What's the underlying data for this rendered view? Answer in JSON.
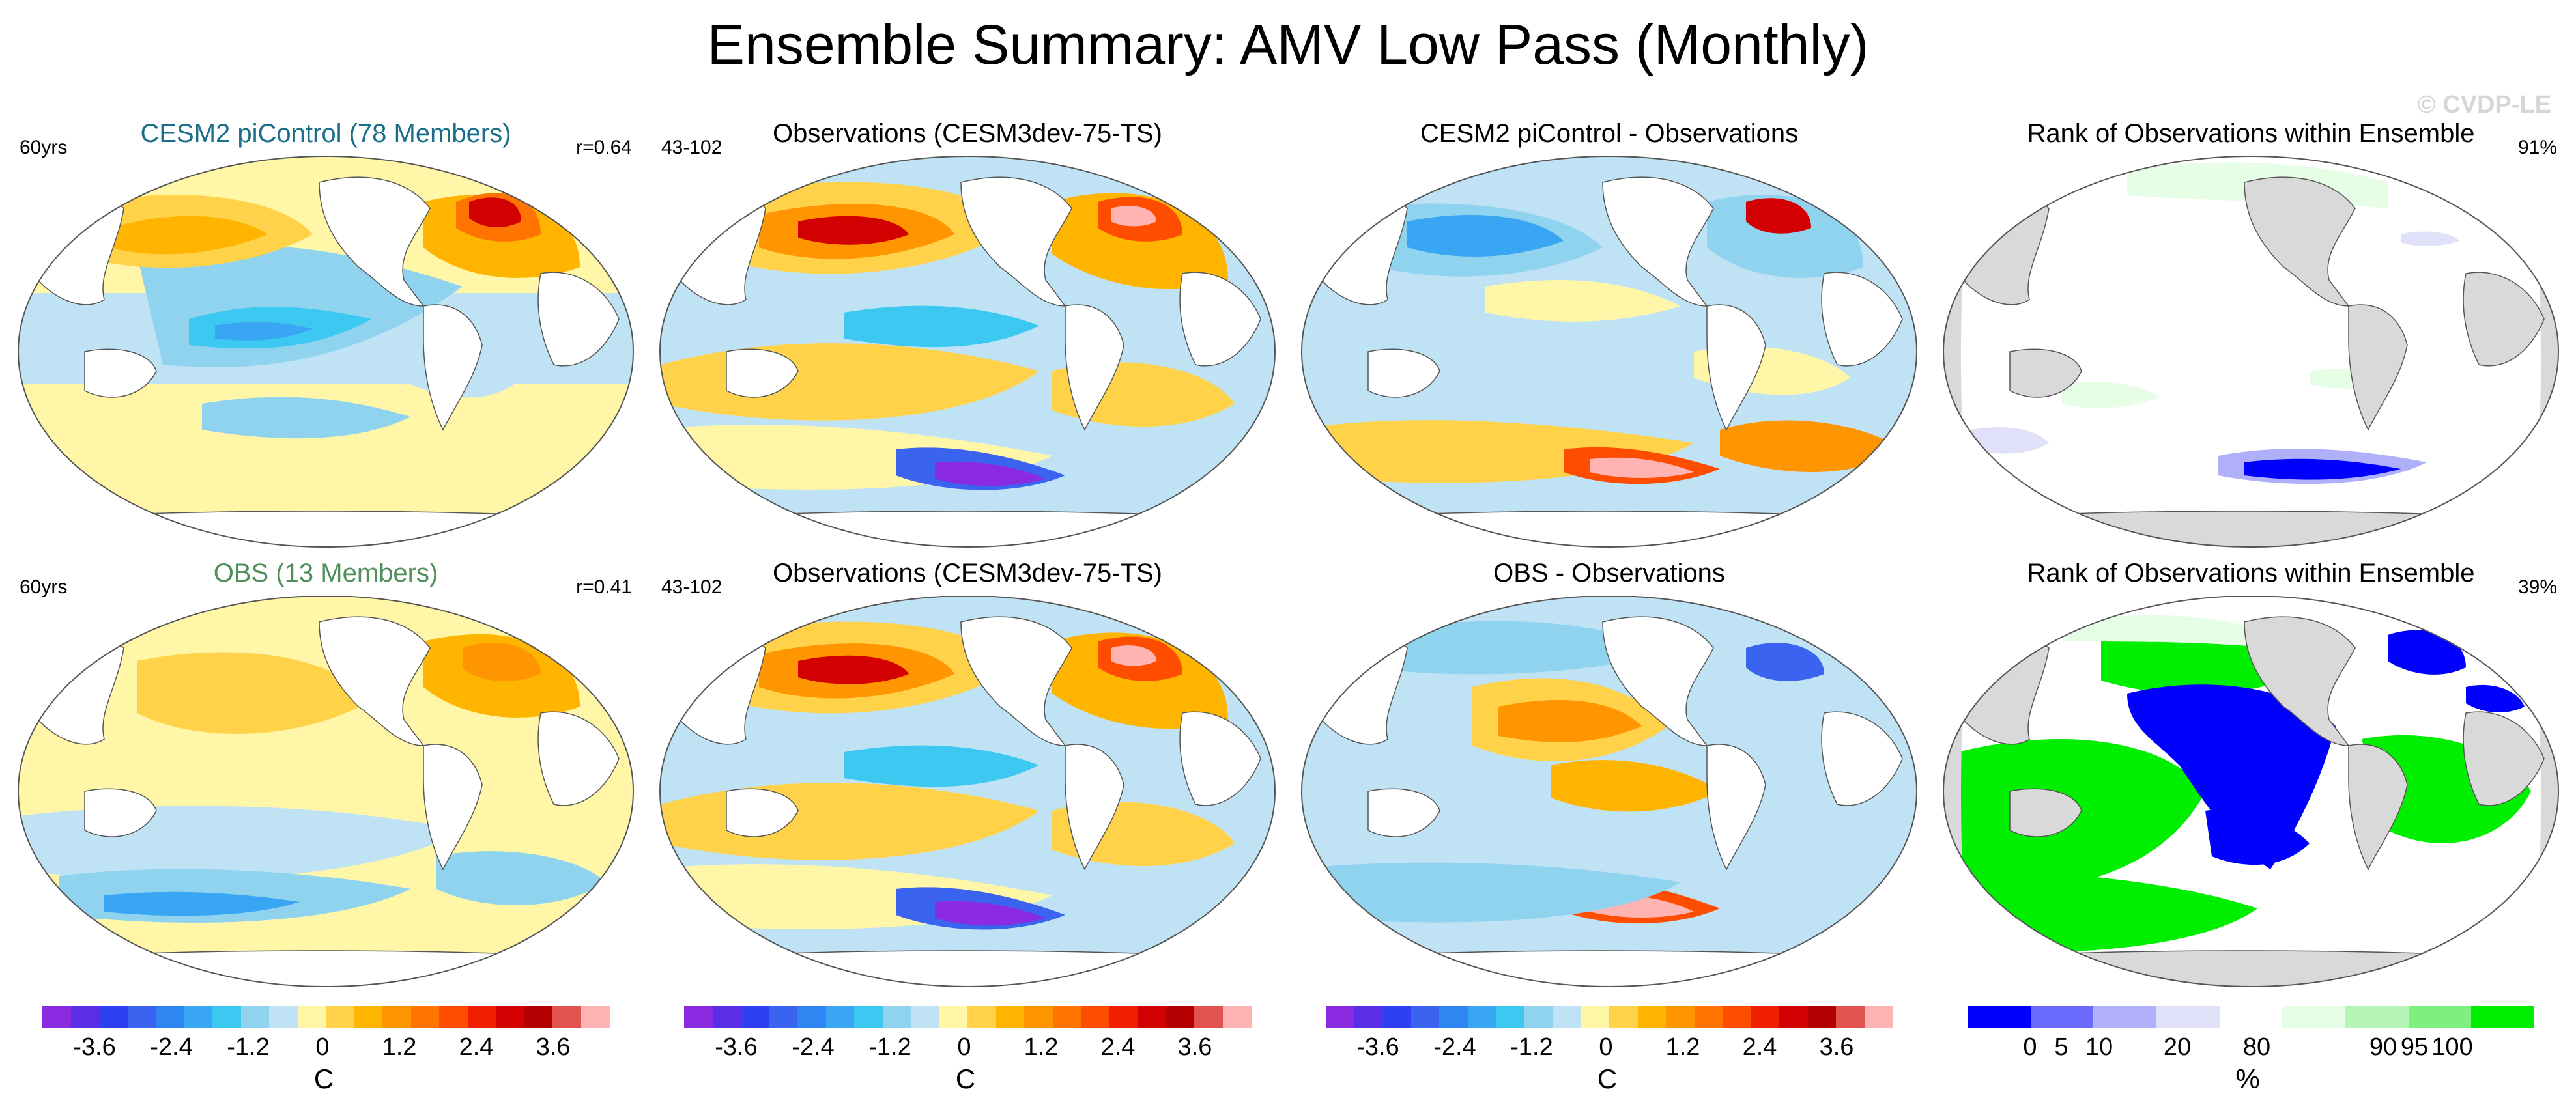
{
  "title": "Ensemble Summary: AMV Low Pass (Monthly)",
  "watermark": "© CVDP-LE",
  "colors": {
    "model_title": "#1a6e8a",
    "obs_title": "#4f8f5a",
    "land_gray": "#d9d9d9",
    "coast": "#555555"
  },
  "panels": [
    {
      "title": "CESM2 piControl (78 Members)",
      "left": "60yrs",
      "right": "r=0.64",
      "kind": "model"
    },
    {
      "title": "Observations (CESM3dev-75-TS)",
      "left": "43-102",
      "right": "",
      "kind": "obs"
    },
    {
      "title": "CESM2 piControl - Observations",
      "left": "",
      "right": "",
      "kind": "diff"
    },
    {
      "title": "Rank of Observations within Ensemble",
      "left": "",
      "right": "91%",
      "kind": "rank1"
    },
    {
      "title": "OBS (13 Members)",
      "left": "60yrs",
      "right": "r=0.41",
      "kind": "obsens"
    },
    {
      "title": "Observations (CESM3dev-75-TS)",
      "left": "43-102",
      "right": "",
      "kind": "obs"
    },
    {
      "title": "OBS - Observations",
      "left": "",
      "right": "",
      "kind": "diff2"
    },
    {
      "title": "Rank of Observations within Ensemble",
      "left": "",
      "right": "39%",
      "kind": "rank2"
    }
  ],
  "colorbar_temp": {
    "colors": [
      "#8a2be2",
      "#5a2ee6",
      "#2f3ff2",
      "#3a64f0",
      "#2f86f2",
      "#38a6f2",
      "#3cc8f0",
      "#8fd3ef",
      "#bfe3f5",
      "#fff6a8",
      "#ffd24a",
      "#ffb400",
      "#ff9500",
      "#ff7300",
      "#ff4d00",
      "#f01e00",
      "#d20000",
      "#b40000",
      "#e0534f",
      "#ffb3b3"
    ],
    "tick_labels": [
      "-3.6",
      "-2.4",
      "-1.2",
      "0",
      "1.2",
      "2.4",
      "3.6"
    ],
    "unit": "C"
  },
  "colorbar_rank": {
    "colors": [
      "#0000ff",
      "#6a6afc",
      "#b0b0fa",
      "#e0e0f8",
      "#ffffff",
      "#e6fde6",
      "#b5f5b5",
      "#7ef07e",
      "#00ee00"
    ],
    "tick_labels": [
      "0",
      "5",
      "10",
      "20",
      "80",
      "90",
      "95",
      "100"
    ],
    "unit": "%"
  }
}
